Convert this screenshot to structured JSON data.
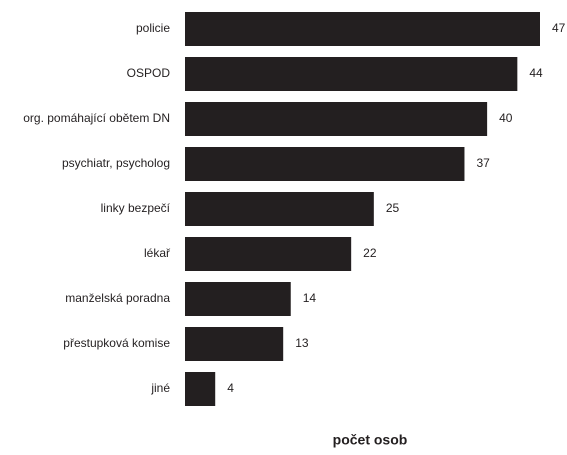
{
  "chart_data": {
    "type": "bar",
    "orientation": "horizontal",
    "categories": [
      "policie",
      "OSPOD",
      "org. pomáhající obětem DN",
      "psychiatr, psycholog",
      "linky bezpečí",
      "lékař",
      "manželská poradna",
      "přestupková komise",
      "jiné"
    ],
    "values": [
      47,
      44,
      40,
      37,
      25,
      22,
      14,
      13,
      4
    ],
    "color": "#231f20",
    "x_label": "počet osob"
  }
}
